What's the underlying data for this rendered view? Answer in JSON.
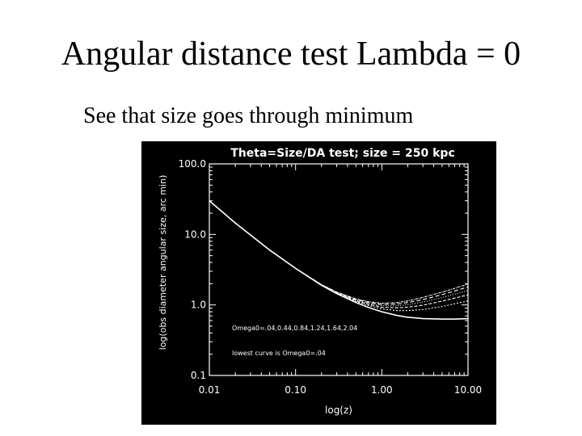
{
  "slide": {
    "title": "Angular distance test Lambda = 0",
    "subtitle": "See that size goes through minimum"
  },
  "chart_data": {
    "type": "line",
    "title": "Theta=Size/DA test;  size = 250 kpc",
    "xlabel": "log(z)",
    "ylabel": "log(obs diameter angular size, arc min)",
    "xscale": "log",
    "yscale": "log",
    "xlim": [
      0.01,
      10.0
    ],
    "ylim": [
      0.1,
      100.0
    ],
    "xticks": [
      "0.01",
      "0.10",
      "1.00",
      "10.00"
    ],
    "yticks": [
      "0.1",
      "1.0",
      "10.0",
      "100.0"
    ],
    "annotations": [
      "Omega0=.04,0.44,0.84,1.24,1.64,2.04",
      "lowest curve is Omega0=.04"
    ],
    "x": [
      0.01,
      0.02,
      0.05,
      0.1,
      0.2,
      0.3,
      0.5,
      0.7,
      1.0,
      1.5,
      2.0,
      3.0,
      5.0,
      7.0,
      10.0
    ],
    "series": [
      {
        "values": [
          30.0,
          14.5,
          6.0,
          3.3,
          1.9,
          1.45,
          1.08,
          0.92,
          0.8,
          0.71,
          0.67,
          0.64,
          0.63,
          0.63,
          0.64
        ]
      },
      {
        "values": [
          30.0,
          14.5,
          6.0,
          3.3,
          1.9,
          1.47,
          1.12,
          0.98,
          0.88,
          0.83,
          0.83,
          0.86,
          0.95,
          1.04,
          1.14
        ]
      },
      {
        "values": [
          30.0,
          14.5,
          6.0,
          3.3,
          1.91,
          1.48,
          1.15,
          1.02,
          0.93,
          0.91,
          0.93,
          0.99,
          1.13,
          1.25,
          1.39
        ]
      },
      {
        "values": [
          30.0,
          14.5,
          6.0,
          3.3,
          1.92,
          1.5,
          1.18,
          1.05,
          0.98,
          0.97,
          1.01,
          1.1,
          1.27,
          1.42,
          1.6
        ]
      },
      {
        "values": [
          30.0,
          14.5,
          6.0,
          3.3,
          1.93,
          1.51,
          1.2,
          1.08,
          1.02,
          1.03,
          1.08,
          1.19,
          1.4,
          1.58,
          1.8
        ]
      },
      {
        "values": [
          30.0,
          14.5,
          6.0,
          3.3,
          1.94,
          1.52,
          1.22,
          1.11,
          1.06,
          1.08,
          1.14,
          1.28,
          1.52,
          1.72,
          1.98
        ]
      }
    ],
    "background": "#000000",
    "foreground": "#ffffff",
    "grid": false
  }
}
